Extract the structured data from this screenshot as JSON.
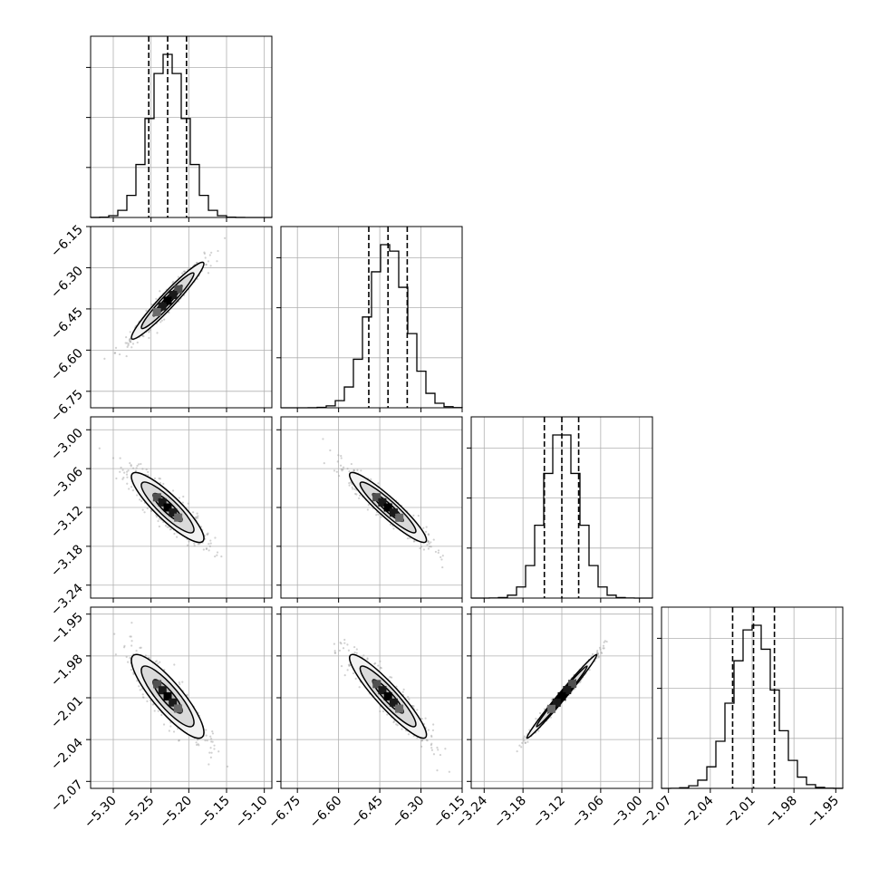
{
  "chart_data": {
    "type": "corner",
    "grid": true,
    "parameters": [
      {
        "ticks": [
          -5.3,
          -5.25,
          -5.2,
          -5.15,
          -5.1
        ],
        "tick_labels": [
          "−5.30",
          "−5.25",
          "−5.20",
          "−5.15",
          "−5.10"
        ],
        "range": [
          -5.33,
          -5.09
        ],
        "median": -5.228,
        "q16": -5.253,
        "q84": -5.203,
        "sigma": 0.024
      },
      {
        "ticks": [
          -6.75,
          -6.6,
          -6.45,
          -6.3,
          -6.15
        ],
        "tick_labels": [
          "−6.75",
          "−6.60",
          "−6.45",
          "−6.30",
          "−6.15"
        ],
        "range": [
          -6.81,
          -6.15
        ],
        "median": -6.42,
        "q16": -6.49,
        "q84": -6.35,
        "sigma": 0.07
      },
      {
        "ticks": [
          -3.24,
          -3.18,
          -3.12,
          -3.06,
          -3.0
        ],
        "tick_labels": [
          "−3.24",
          "−3.18",
          "−3.12",
          "−3.06",
          "−3.00"
        ],
        "range": [
          -3.26,
          -2.98
        ],
        "median": -3.12,
        "q16": -3.147,
        "q84": -3.094,
        "sigma": 0.027
      },
      {
        "ticks": [
          -2.07,
          -2.04,
          -2.01,
          -1.98,
          -1.95
        ],
        "tick_labels": [
          "−2.07",
          "−2.04",
          "−2.01",
          "−1.98",
          "−1.95"
        ],
        "range": [
          -2.075,
          -1.945
        ],
        "median": -2.009,
        "q16": -2.024,
        "q84": -1.994,
        "sigma": 0.015
      }
    ],
    "correlations": {
      "1-0": 0.96,
      "2-0": -0.88,
      "2-1": -0.93,
      "3-0": -0.86,
      "3-1": -0.92,
      "3-2": 0.99
    },
    "colors": {
      "line": "#000000",
      "points": "#9a9a9a",
      "grid": "#b0b0b0"
    }
  }
}
